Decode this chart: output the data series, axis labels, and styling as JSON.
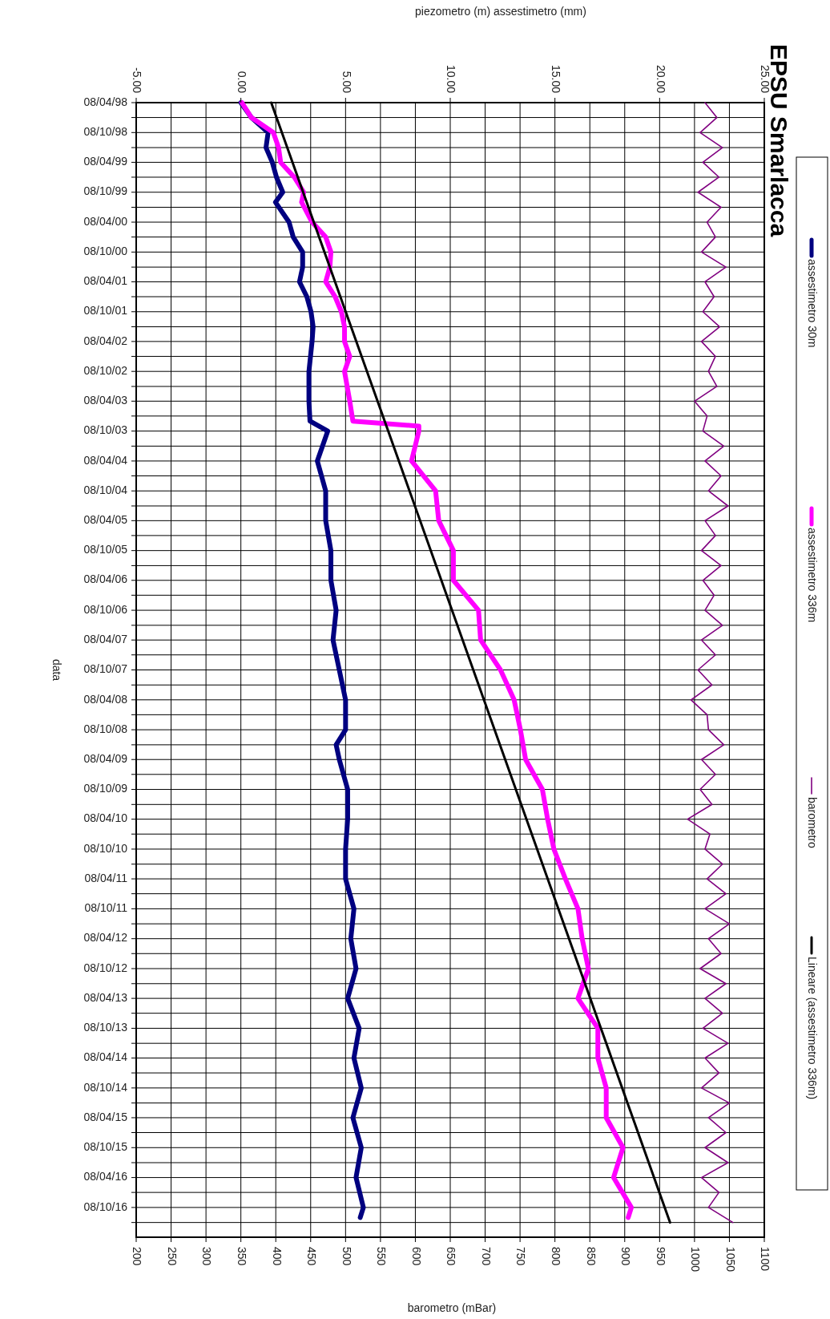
{
  "chart_data": {
    "type": "line",
    "title": "EPSU Smarlacca",
    "orientation": "horizontal",
    "ylabel": "data",
    "x2label": "piezometro (m) assestimetro (mm)",
    "xlabel": "barometro (mBar)",
    "ylim": [
      "2017-04-08",
      "1998-04-08"
    ],
    "yticks": [
      {
        "value": "1998-04-08",
        "label": "08/04/98"
      },
      {
        "value": "1998-07-08",
        "label": null
      },
      {
        "value": "1998-10-08",
        "label": "08/10/98"
      },
      {
        "value": "1999-01-08",
        "label": null
      },
      {
        "value": "1999-04-08",
        "label": "08/04/99"
      },
      {
        "value": "1999-07-08",
        "label": null
      },
      {
        "value": "1999-10-08",
        "label": "08/10/99"
      },
      {
        "value": "2000-01-08",
        "label": null
      },
      {
        "value": "2000-04-08",
        "label": "08/04/00"
      },
      {
        "value": "2000-07-08",
        "label": null
      },
      {
        "value": "2000-10-08",
        "label": "08/10/00"
      },
      {
        "value": "2001-01-08",
        "label": null
      },
      {
        "value": "2001-04-08",
        "label": "08/04/01"
      },
      {
        "value": "2001-07-08",
        "label": null
      },
      {
        "value": "2001-10-08",
        "label": "08/10/01"
      },
      {
        "value": "2002-01-08",
        "label": null
      },
      {
        "value": "2002-04-08",
        "label": "08/04/02"
      },
      {
        "value": "2002-07-08",
        "label": null
      },
      {
        "value": "2002-10-08",
        "label": "08/10/02"
      },
      {
        "value": "2003-01-08",
        "label": null
      },
      {
        "value": "2003-04-08",
        "label": "08/04/03"
      },
      {
        "value": "2003-07-08",
        "label": null
      },
      {
        "value": "2003-10-08",
        "label": "08/10/03"
      },
      {
        "value": "2004-01-08",
        "label": null
      },
      {
        "value": "2004-04-08",
        "label": "08/04/04"
      },
      {
        "value": "2004-07-08",
        "label": null
      },
      {
        "value": "2004-10-08",
        "label": "08/10/04"
      },
      {
        "value": "2005-01-08",
        "label": null
      },
      {
        "value": "2005-04-08",
        "label": "08/04/05"
      },
      {
        "value": "2005-07-08",
        "label": null
      },
      {
        "value": "2005-10-08",
        "label": "08/10/05"
      },
      {
        "value": "2006-01-08",
        "label": null
      },
      {
        "value": "2006-04-08",
        "label": "08/04/06"
      },
      {
        "value": "2006-07-08",
        "label": null
      },
      {
        "value": "2006-10-08",
        "label": "08/10/06"
      },
      {
        "value": "2007-01-08",
        "label": null
      },
      {
        "value": "2007-04-08",
        "label": "08/04/07"
      },
      {
        "value": "2007-07-08",
        "label": null
      },
      {
        "value": "2007-10-08",
        "label": "08/10/07"
      },
      {
        "value": "2008-01-08",
        "label": null
      },
      {
        "value": "2008-04-08",
        "label": "08/04/08"
      },
      {
        "value": "2008-07-08",
        "label": null
      },
      {
        "value": "2008-10-08",
        "label": "08/10/08"
      },
      {
        "value": "2009-01-08",
        "label": null
      },
      {
        "value": "2009-04-08",
        "label": "08/04/09"
      },
      {
        "value": "2009-07-08",
        "label": null
      },
      {
        "value": "2009-10-08",
        "label": "08/10/09"
      },
      {
        "value": "2010-01-08",
        "label": null
      },
      {
        "value": "2010-04-08",
        "label": "08/04/10"
      },
      {
        "value": "2010-07-08",
        "label": null
      },
      {
        "value": "2010-10-08",
        "label": "08/10/10"
      },
      {
        "value": "2011-01-08",
        "label": null
      },
      {
        "value": "2011-04-08",
        "label": "08/04/11"
      },
      {
        "value": "2011-07-08",
        "label": null
      },
      {
        "value": "2011-10-08",
        "label": "08/10/11"
      },
      {
        "value": "2012-01-08",
        "label": null
      },
      {
        "value": "2012-04-08",
        "label": "08/04/12"
      },
      {
        "value": "2012-07-08",
        "label": null
      },
      {
        "value": "2012-10-08",
        "label": "08/10/12"
      },
      {
        "value": "2013-01-08",
        "label": null
      },
      {
        "value": "2013-04-08",
        "label": "08/04/13"
      },
      {
        "value": "2013-07-08",
        "label": null
      },
      {
        "value": "2013-10-08",
        "label": "08/10/13"
      },
      {
        "value": "2014-01-08",
        "label": null
      },
      {
        "value": "2014-04-08",
        "label": "08/04/14"
      },
      {
        "value": "2014-07-08",
        "label": null
      },
      {
        "value": "2014-10-08",
        "label": "08/10/14"
      },
      {
        "value": "2015-01-08",
        "label": null
      },
      {
        "value": "2015-04-08",
        "label": "08/04/15"
      },
      {
        "value": "2015-07-08",
        "label": null
      },
      {
        "value": "2015-10-08",
        "label": "08/10/15"
      },
      {
        "value": "2016-01-08",
        "label": null
      },
      {
        "value": "2016-04-08",
        "label": "08/04/16"
      },
      {
        "value": "2016-07-08",
        "label": null
      },
      {
        "value": "2016-10-08",
        "label": "08/10/16"
      },
      {
        "value": "2017-01-08",
        "label": null
      }
    ],
    "x2lim": [
      -5,
      25
    ],
    "x2ticks": [
      {
        "value": -5,
        "label": "-5.00"
      },
      {
        "value": 0,
        "label": "0.00"
      },
      {
        "value": 5,
        "label": "5.00"
      },
      {
        "value": 10,
        "label": "10.00"
      },
      {
        "value": 15,
        "label": "15.00"
      },
      {
        "value": 20,
        "label": "20.00"
      },
      {
        "value": 25,
        "label": "25.00"
      }
    ],
    "xlim": [
      200,
      1100
    ],
    "xticks": [
      200,
      250,
      300,
      350,
      400,
      450,
      500,
      550,
      600,
      650,
      700,
      750,
      800,
      850,
      900,
      950,
      1000,
      1050,
      1100
    ],
    "grid": true,
    "legend": "right",
    "series": [
      {
        "name": "assestimetro 30m",
        "color": "#000080",
        "axis": "x2",
        "x": [
          "1998-04-08",
          "1998-07-08",
          "1998-10-08",
          "1999-01-08",
          "1999-04-08",
          "1999-07-08",
          "1999-10-08",
          "1999-12-08",
          "2000-04-08",
          "2000-07-08",
          "2000-10-08",
          "2001-01-08",
          "2001-04-08",
          "2001-07-08",
          "2001-10-08",
          "2002-01-08",
          "2002-04-08",
          "2002-10-08",
          "2003-04-08",
          "2003-08-08",
          "2003-10-08",
          "2004-04-08",
          "2004-10-08",
          "2005-04-08",
          "2005-10-08",
          "2006-04-08",
          "2006-10-08",
          "2007-04-08",
          "2007-10-08",
          "2008-04-08",
          "2008-10-08",
          "2009-01-08",
          "2009-04-08",
          "2009-10-08",
          "2010-04-08",
          "2010-10-08",
          "2011-04-08",
          "2011-10-08",
          "2012-04-08",
          "2012-10-08",
          "2013-04-08",
          "2013-10-08",
          "2014-04-08",
          "2014-10-08",
          "2015-04-08",
          "2015-10-08",
          "2016-04-08",
          "2016-10-08",
          "2016-12-08"
        ],
        "values": [
          0,
          0.5,
          1.3,
          1.2,
          1.5,
          1.7,
          2.0,
          1.65,
          2.3,
          2.5,
          2.95,
          2.95,
          2.8,
          3.15,
          3.35,
          3.45,
          3.4,
          3.25,
          3.25,
          3.3,
          4.15,
          3.65,
          4.05,
          4.05,
          4.3,
          4.3,
          4.55,
          4.4,
          4.7,
          5.0,
          5.0,
          4.55,
          4.7,
          5.1,
          5.1,
          5.0,
          5.0,
          5.4,
          5.25,
          5.5,
          5.1,
          5.65,
          5.4,
          5.75,
          5.35,
          5.75,
          5.5,
          5.85,
          5.7
        ]
      },
      {
        "name": "assestimetro 336m",
        "color": "#ff00ff",
        "axis": "x2",
        "x": [
          "1998-04-08",
          "1998-07-08",
          "1998-10-08",
          "1999-01-08",
          "1999-04-08",
          "1999-07-08",
          "1999-10-08",
          "1999-12-08",
          "2000-04-08",
          "2000-07-08",
          "2000-10-08",
          "2001-01-08",
          "2001-04-08",
          "2001-07-08",
          "2001-10-08",
          "2002-01-08",
          "2002-04-08",
          "2002-07-08",
          "2002-10-08",
          "2003-04-08",
          "2003-08-08",
          "2003-09-08",
          "2003-10-08",
          "2004-04-08",
          "2004-10-08",
          "2005-04-08",
          "2005-10-08",
          "2006-04-08",
          "2006-10-08",
          "2007-04-08",
          "2007-10-08",
          "2008-04-08",
          "2008-10-08",
          "2009-04-08",
          "2009-10-08",
          "2010-04-08",
          "2010-10-08",
          "2011-04-08",
          "2011-10-08",
          "2012-04-08",
          "2012-10-08",
          "2013-04-08",
          "2013-10-08",
          "2014-04-08",
          "2014-10-08",
          "2015-04-08",
          "2015-10-08",
          "2016-04-08",
          "2016-10-08",
          "2016-12-08"
        ],
        "values": [
          0.05,
          0.5,
          1.55,
          1.8,
          1.9,
          2.55,
          3.0,
          2.9,
          3.4,
          4.05,
          4.3,
          4.25,
          4.05,
          4.5,
          4.8,
          4.95,
          4.95,
          5.2,
          4.95,
          5.2,
          5.35,
          8.5,
          8.5,
          8.15,
          9.3,
          9.45,
          10.15,
          10.15,
          11.35,
          11.45,
          12.4,
          13.05,
          13.35,
          13.6,
          14.4,
          14.65,
          14.95,
          15.5,
          16.1,
          16.3,
          16.6,
          16.1,
          17.05,
          17.05,
          17.45,
          17.45,
          18.25,
          17.8,
          18.65,
          18.5
        ]
      },
      {
        "name": "barometro",
        "color": "#800080",
        "x": [
          "1998-04-08",
          "1998-07-08",
          "1998-10-08",
          "1999-01-08",
          "1999-04-08",
          "1999-07-08",
          "1999-10-08",
          "2000-01-08",
          "2000-04-08",
          "2000-07-08",
          "2000-10-08",
          "2001-01-08",
          "2001-04-08",
          "2001-07-08",
          "2001-10-08",
          "2002-01-08",
          "2002-04-08",
          "2002-07-08",
          "2002-10-08",
          "2003-01-08",
          "2003-04-08",
          "2003-07-08",
          "2003-10-08",
          "2004-01-08",
          "2004-04-08",
          "2004-07-08",
          "2004-10-08",
          "2005-01-08",
          "2005-04-08",
          "2005-07-08",
          "2005-10-08",
          "2006-01-08",
          "2006-04-08",
          "2006-07-08",
          "2006-10-08",
          "2007-01-08",
          "2007-04-08",
          "2007-07-08",
          "2007-10-08",
          "2008-01-08",
          "2008-04-08",
          "2008-07-08",
          "2008-10-08",
          "2009-01-08",
          "2009-04-08",
          "2009-07-08",
          "2009-10-08",
          "2010-01-08",
          "2010-04-08",
          "2010-07-08",
          "2010-10-08",
          "2011-01-08",
          "2011-04-08",
          "2011-07-08",
          "2011-10-08",
          "2012-01-08",
          "2012-04-08",
          "2012-07-08",
          "2012-10-08",
          "2013-01-08",
          "2013-04-08",
          "2013-07-08",
          "2013-10-08",
          "2014-01-08",
          "2014-04-08",
          "2014-07-08",
          "2014-10-08",
          "2015-01-08",
          "2015-04-08",
          "2015-07-08",
          "2015-10-08",
          "2016-01-08",
          "2016-04-08",
          "2016-07-08",
          "2016-10-08",
          "2017-01-08"
        ],
        "values": [
          1015,
          1032,
          1008,
          1040,
          1012,
          1035,
          1005,
          1038,
          1018,
          1030,
          1010,
          1045,
          1015,
          1028,
          1012,
          1036,
          1010,
          1030,
          1020,
          1032,
          1000,
          1018,
          1012,
          1042,
          1015,
          1038,
          1020,
          1048,
          1015,
          1030,
          1010,
          1038,
          1012,
          1028,
          1015,
          1040,
          1010,
          1030,
          1005,
          1025,
          995,
          1018,
          1020,
          1042,
          1010,
          1030,
          1008,
          1025,
          990,
          1022,
          1015,
          1040,
          1018,
          1045,
          1015,
          1050,
          1020,
          1038,
          1008,
          1045,
          1015,
          1040,
          1012,
          1048,
          1015,
          1035,
          1010,
          1050,
          1020,
          1045,
          1015,
          1048,
          1010,
          1035,
          1020,
          1055
        ]
      },
      {
        "name": "Lineare (assestimetro 336m)",
        "color": "#000000",
        "axis": "x2",
        "x": [
          "1998-04-08",
          "2017-01-08"
        ],
        "values": [
          1.45,
          20.5
        ]
      }
    ]
  }
}
